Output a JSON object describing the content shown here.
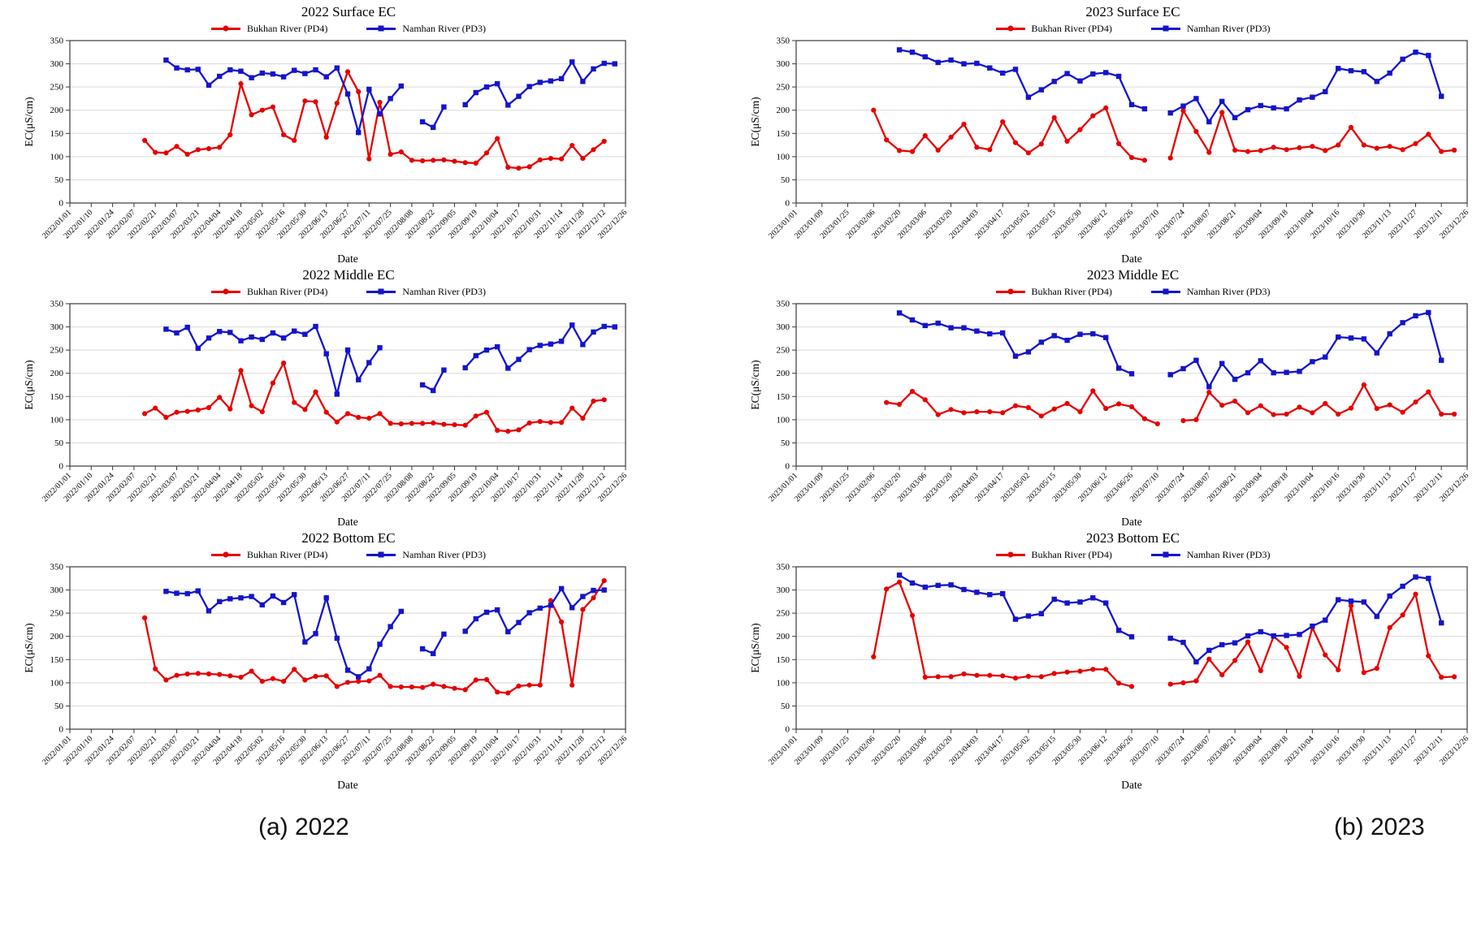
{
  "figure": {
    "caption_left": "(a) 2022",
    "caption_right": "(b) 2023"
  },
  "legend": [
    {
      "label": "Bukhan River (PD4)",
      "color": "#e60000",
      "marker": "circle"
    },
    {
      "label": "Namhan River (PD3)",
      "color": "#1414cc",
      "marker": "square"
    }
  ],
  "axes": {
    "ylabel": "EC(μS/cm)",
    "xlabel": "Date",
    "ymin": 0,
    "ymax": 350,
    "ystep": 50,
    "grid": "horizontal",
    "legend_position": "top-center",
    "x_ticks_2022": [
      "2022/01/01",
      "2022/01/10",
      "2022/01/24",
      "2022/02/07",
      "2022/02/21",
      "2022/03/07",
      "2022/03/21",
      "2022/04/04",
      "2022/04/18",
      "2022/05/02",
      "2022/05/16",
      "2022/05/30",
      "2022/06/13",
      "2022/06/27",
      "2022/07/11",
      "2022/07/25",
      "2022/08/08",
      "2022/08/22",
      "2022/09/05",
      "2022/09/19",
      "2022/10/04",
      "2022/10/17",
      "2022/10/31",
      "2022/11/14",
      "2022/11/28",
      "2022/12/12",
      "2022/12/26"
    ],
    "x_ticks_2023": [
      "2023/01/01",
      "2023/01/09",
      "2023/01/25",
      "2023/02/06",
      "2023/02/20",
      "2023/03/06",
      "2023/03/20",
      "2023/04/03",
      "2023/04/17",
      "2023/05/02",
      "2023/05/15",
      "2023/05/30",
      "2023/06/12",
      "2023/06/26",
      "2023/07/10",
      "2023/07/24",
      "2023/08/07",
      "2023/08/21",
      "2023/09/04",
      "2023/09/18",
      "2023/10/04",
      "2023/10/16",
      "2023/10/30",
      "2023/11/13",
      "2023/11/27",
      "2023/12/11",
      "2023/12/26"
    ]
  },
  "chart_data": [
    {
      "type": "line",
      "title": "2022 Surface EC",
      "xticks": "x_ticks_2022",
      "ylim": [
        0,
        350
      ],
      "series": [
        {
          "name": "Bukhan River (PD4)",
          "color": "#e60000",
          "marker": "circle",
          "segments": [
            {
              "x0": 3.5,
              "dx": 0.5,
              "values": [
                135,
                109,
                108,
                122,
                105,
                115,
                117,
                120,
                147,
                257,
                190,
                200,
                207,
                147,
                135,
                220,
                218,
                142,
                215,
                283,
                240,
                95,
                217,
                105,
                110,
                92,
                91,
                92,
                93,
                90,
                87,
                86,
                108,
                139,
                77,
                75,
                78,
                93,
                96,
                95,
                124,
                96,
                115,
                133
              ]
            }
          ]
        },
        {
          "name": "Namhan River (PD3)",
          "color": "#1414cc",
          "marker": "square",
          "segments": [
            {
              "x0": 4.5,
              "dx": 0.5,
              "values": [
                308,
                291,
                287,
                288,
                254,
                273,
                287,
                284,
                270,
                280,
                278,
                272,
                286,
                279,
                287,
                272,
                291,
                235,
                152,
                245,
                192,
                225,
                252
              ]
            },
            {
              "x0": 16.5,
              "dx": 0.5,
              "values": [
                175,
                163,
                207
              ]
            },
            {
              "x0": 18.5,
              "dx": 0.5,
              "values": [
                212,
                238,
                250,
                257,
                211,
                230,
                251,
                260,
                263,
                268,
                304,
                262,
                289,
                301,
                300
              ]
            }
          ]
        }
      ]
    },
    {
      "type": "line",
      "title": "2022 Middle EC",
      "xticks": "x_ticks_2022",
      "ylim": [
        0,
        350
      ],
      "series": [
        {
          "name": "Bukhan River (PD4)",
          "color": "#e60000",
          "marker": "circle",
          "segments": [
            {
              "x0": 3.5,
              "dx": 0.5,
              "values": [
                113,
                125,
                105,
                116,
                118,
                121,
                126,
                148,
                123,
                206,
                130,
                117,
                179,
                222,
                137,
                122,
                160,
                116,
                95,
                113,
                105,
                103,
                113,
                92,
                91,
                92,
                92,
                93,
                90,
                89,
                88,
                108,
                116,
                77,
                75,
                78,
                93,
                96,
                94,
                94,
                125,
                103,
                140,
                143
              ]
            }
          ]
        },
        {
          "name": "Namhan River (PD3)",
          "color": "#1414cc",
          "marker": "square",
          "segments": [
            {
              "x0": 4.5,
              "dx": 0.5,
              "values": [
                295,
                287,
                299,
                254,
                276,
                290,
                288,
                270,
                278,
                273,
                287,
                276,
                291,
                284,
                301,
                242,
                155,
                250,
                186,
                223,
                255
              ]
            },
            {
              "x0": 16.5,
              "dx": 0.5,
              "values": [
                175,
                163,
                207
              ]
            },
            {
              "x0": 18.5,
              "dx": 0.5,
              "values": [
                212,
                238,
                250,
                257,
                211,
                230,
                251,
                260,
                263,
                269,
                304,
                262,
                289,
                301,
                300
              ]
            }
          ]
        }
      ]
    },
    {
      "type": "line",
      "title": "2022 Bottom EC",
      "xticks": "x_ticks_2022",
      "ylim": [
        0,
        350
      ],
      "series": [
        {
          "name": "Bukhan River (PD4)",
          "color": "#e60000",
          "marker": "circle",
          "segments": [
            {
              "x0": 3.5,
              "dx": 0.5,
              "values": [
                240,
                130,
                106,
                116,
                119,
                120,
                119,
                118,
                115,
                112,
                125,
                103,
                109,
                103,
                129,
                106,
                114,
                115,
                92,
                101,
                103,
                104,
                116,
                92,
                91,
                91,
                90,
                97,
                92,
                88,
                85,
                106,
                107,
                80,
                78,
                93,
                95,
                95,
                277,
                231,
                95,
                258,
                283,
                320
              ]
            }
          ]
        },
        {
          "name": "Namhan River (PD3)",
          "color": "#1414cc",
          "marker": "square",
          "segments": [
            {
              "x0": 4.5,
              "dx": 0.5,
              "values": [
                297,
                293,
                292,
                298,
                255,
                275,
                281,
                283,
                286,
                268,
                287,
                273,
                290,
                188,
                206,
                283,
                196,
                127,
                113,
                130,
                183,
                221,
                254
              ]
            },
            {
              "x0": 16.5,
              "dx": 0.5,
              "values": [
                173,
                163,
                205
              ]
            },
            {
              "x0": 18.5,
              "dx": 0.5,
              "values": [
                211,
                238,
                252,
                257,
                210,
                230,
                251,
                261,
                267,
                303,
                262,
                286,
                299,
                300
              ]
            }
          ]
        }
      ]
    },
    {
      "type": "line",
      "title": "2023 Surface EC",
      "xticks": "x_ticks_2023",
      "ylim": [
        0,
        350
      ],
      "series": [
        {
          "name": "Bukhan River (PD4)",
          "color": "#e60000",
          "marker": "circle",
          "segments": [
            {
              "x0": 3.0,
              "dx": 0.5,
              "values": [
                200,
                136,
                113,
                111,
                145,
                114,
                142,
                170,
                120,
                115,
                175,
                130,
                108,
                127,
                184,
                133,
                158,
                188,
                205,
                128,
                98,
                92
              ]
            },
            {
              "x0": 14.5,
              "dx": 0.5,
              "values": [
                97,
                199,
                154,
                109,
                195,
                114,
                111,
                113,
                120,
                115,
                119,
                122,
                113,
                125,
                163,
                125,
                118,
                122,
                115,
                128,
                148,
                111,
                114
              ]
            }
          ]
        },
        {
          "name": "Namhan River (PD3)",
          "color": "#1414cc",
          "marker": "square",
          "segments": [
            {
              "x0": 4.0,
              "dx": 0.5,
              "values": [
                330,
                325,
                315,
                303,
                308,
                300,
                301,
                291,
                280,
                288,
                228,
                244,
                262,
                279,
                263,
                278,
                281,
                273,
                212,
                203
              ]
            },
            {
              "x0": 14.5,
              "dx": 0.5,
              "values": [
                194,
                209,
                225,
                175,
                219,
                184,
                201,
                210,
                205,
                203,
                222,
                228,
                240,
                290,
                285,
                283,
                262,
                280,
                310,
                325,
                318,
                230
              ]
            }
          ]
        }
      ]
    },
    {
      "type": "line",
      "title": "2023 Middle EC",
      "xticks": "x_ticks_2023",
      "ylim": [
        0,
        350
      ],
      "series": [
        {
          "name": "Bukhan River (PD4)",
          "color": "#e60000",
          "marker": "circle",
          "segments": [
            {
              "x0": 3.5,
              "dx": 0.5,
              "values": [
                137,
                133,
                161,
                143,
                111,
                122,
                115,
                117,
                117,
                115,
                130,
                126,
                108,
                123,
                135,
                117,
                162,
                124,
                134,
                128,
                102,
                91
              ]
            },
            {
              "x0": 15.0,
              "dx": 0.5,
              "values": [
                98,
                100,
                159,
                131,
                140,
                115,
                130,
                111,
                112,
                127,
                115,
                135,
                112,
                125,
                175,
                124,
                132,
                116,
                138,
                160,
                112,
                112
              ]
            }
          ]
        },
        {
          "name": "Namhan River (PD3)",
          "color": "#1414cc",
          "marker": "square",
          "segments": [
            {
              "x0": 4.0,
              "dx": 0.5,
              "values": [
                330,
                315,
                303,
                308,
                298,
                298,
                291,
                285,
                287,
                237,
                246,
                267,
                281,
                271,
                284,
                285,
                277,
                211,
                199
              ]
            },
            {
              "x0": 14.5,
              "dx": 0.5,
              "values": [
                197,
                210,
                228,
                171,
                221,
                187,
                201,
                227,
                201,
                202,
                204,
                225,
                235,
                278,
                276,
                274,
                244,
                285,
                309,
                324,
                331,
                228
              ]
            }
          ]
        }
      ]
    },
    {
      "type": "line",
      "title": "2023 Bottom EC",
      "xticks": "x_ticks_2023",
      "ylim": [
        0,
        350
      ],
      "series": [
        {
          "name": "Bukhan River (PD4)",
          "color": "#e60000",
          "marker": "circle",
          "segments": [
            {
              "x0": 3.0,
              "dx": 0.5,
              "values": [
                156,
                302,
                317,
                245,
                112,
                113,
                113,
                119,
                116,
                116,
                115,
                110,
                114,
                113,
                120,
                123,
                125,
                129,
                129,
                99,
                92
              ]
            },
            {
              "x0": 14.5,
              "dx": 0.5,
              "values": [
                97,
                100,
                104,
                151,
                117,
                148,
                188,
                126,
                200,
                176,
                114,
                219,
                160,
                128,
                266,
                122,
                131,
                219,
                246,
                291,
                158,
                112,
                113
              ]
            }
          ]
        },
        {
          "name": "Namhan River (PD3)",
          "color": "#1414cc",
          "marker": "square",
          "segments": [
            {
              "x0": 4.0,
              "dx": 0.5,
              "values": [
                332,
                315,
                306,
                310,
                311,
                301,
                295,
                290,
                292,
                237,
                244,
                249,
                280,
                272,
                274,
                283,
                272,
                213,
                199
              ]
            },
            {
              "x0": 14.5,
              "dx": 0.5,
              "values": [
                196,
                187,
                145,
                170,
                182,
                186,
                201,
                210,
                201,
                202,
                204,
                222,
                235,
                279,
                276,
                274,
                243,
                287,
                308,
                328,
                325,
                229
              ]
            }
          ]
        }
      ]
    }
  ]
}
